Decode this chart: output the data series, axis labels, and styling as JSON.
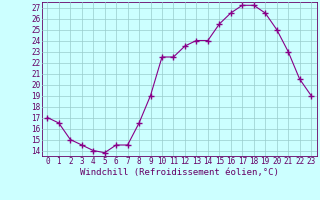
{
  "hours": [
    0,
    1,
    2,
    3,
    4,
    5,
    6,
    7,
    8,
    9,
    10,
    11,
    12,
    13,
    14,
    15,
    16,
    17,
    18,
    19,
    20,
    21,
    22,
    23
  ],
  "values": [
    17.0,
    16.5,
    15.0,
    14.5,
    14.0,
    13.8,
    14.5,
    14.5,
    16.5,
    19.0,
    22.5,
    22.5,
    23.5,
    24.0,
    24.0,
    25.5,
    26.5,
    27.2,
    27.2,
    26.5,
    25.0,
    23.0,
    20.5,
    19.0
  ],
  "line_color": "#880088",
  "marker": "+",
  "marker_size": 4,
  "bg_color": "#ccffff",
  "grid_color": "#99cccc",
  "ylim": [
    13.5,
    27.5
  ],
  "yticks": [
    14,
    15,
    16,
    17,
    18,
    19,
    20,
    21,
    22,
    23,
    24,
    25,
    26,
    27
  ],
  "xlim": [
    -0.5,
    23.5
  ],
  "xticks": [
    0,
    1,
    2,
    3,
    4,
    5,
    6,
    7,
    8,
    9,
    10,
    11,
    12,
    13,
    14,
    15,
    16,
    17,
    18,
    19,
    20,
    21,
    22,
    23
  ],
  "xlabel": "Windchill (Refroidissement éolien,°C)",
  "xlabel_fontsize": 6.5,
  "tick_fontsize": 5.5,
  "axis_color": "#660066"
}
